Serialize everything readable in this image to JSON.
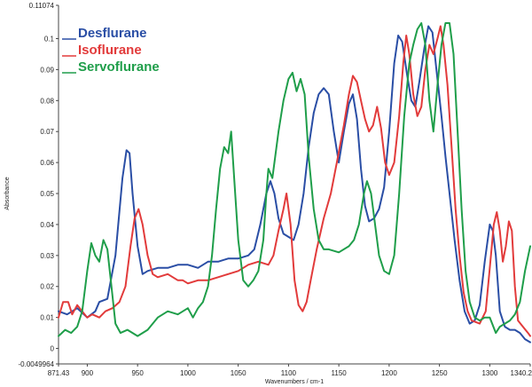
{
  "chart_data": {
    "type": "line",
    "title": "",
    "xlabel": "Wavenumbers / cm-1",
    "ylabel": "Absorbance",
    "xlim": [
      871.43,
      1340.2
    ],
    "ylim": [
      -0.0049964,
      0.11074
    ],
    "x_ticks": [
      {
        "value": 871.43,
        "label": "871.43"
      },
      {
        "value": 900,
        "label": "900"
      },
      {
        "value": 950,
        "label": "950"
      },
      {
        "value": 1000,
        "label": "1000"
      },
      {
        "value": 1050,
        "label": "1050"
      },
      {
        "value": 1100,
        "label": "1100"
      },
      {
        "value": 1150,
        "label": "1150"
      },
      {
        "value": 1200,
        "label": "1200"
      },
      {
        "value": 1250,
        "label": "1250"
      },
      {
        "value": 1300,
        "label": "1300"
      },
      {
        "value": 1340.2,
        "label": "1340.2"
      }
    ],
    "y_ticks": [
      {
        "value": -0.0049964,
        "label": "-0.0049964"
      },
      {
        "value": 0,
        "label": "0"
      },
      {
        "value": 0.01,
        "label": "0.01"
      },
      {
        "value": 0.02,
        "label": "0.02"
      },
      {
        "value": 0.03,
        "label": "0.03"
      },
      {
        "value": 0.04,
        "label": "0.04"
      },
      {
        "value": 0.05,
        "label": "0.05"
      },
      {
        "value": 0.06,
        "label": "0.06"
      },
      {
        "value": 0.07,
        "label": "0.07"
      },
      {
        "value": 0.08,
        "label": "0.08"
      },
      {
        "value": 0.09,
        "label": "0.09"
      },
      {
        "value": 0.1,
        "label": "0.1"
      },
      {
        "value": 0.11074,
        "label": "0.11074"
      }
    ],
    "grid": false,
    "legend_position": "top-left",
    "series": [
      {
        "name": "Desflurane",
        "color": "#2a4ea5",
        "points": [
          [
            871.43,
            0.012
          ],
          [
            880,
            0.011
          ],
          [
            890,
            0.013
          ],
          [
            900,
            0.01
          ],
          [
            908,
            0.012
          ],
          [
            912,
            0.015
          ],
          [
            920,
            0.016
          ],
          [
            928,
            0.03
          ],
          [
            935,
            0.055
          ],
          [
            939,
            0.064
          ],
          [
            942,
            0.063
          ],
          [
            945,
            0.05
          ],
          [
            950,
            0.033
          ],
          [
            955,
            0.024
          ],
          [
            960,
            0.025
          ],
          [
            970,
            0.026
          ],
          [
            980,
            0.026
          ],
          [
            990,
            0.027
          ],
          [
            1000,
            0.027
          ],
          [
            1010,
            0.026
          ],
          [
            1020,
            0.028
          ],
          [
            1030,
            0.028
          ],
          [
            1040,
            0.029
          ],
          [
            1050,
            0.029
          ],
          [
            1060,
            0.03
          ],
          [
            1066,
            0.032
          ],
          [
            1072,
            0.04
          ],
          [
            1078,
            0.05
          ],
          [
            1082,
            0.054
          ],
          [
            1086,
            0.05
          ],
          [
            1090,
            0.042
          ],
          [
            1095,
            0.037
          ],
          [
            1100,
            0.036
          ],
          [
            1105,
            0.035
          ],
          [
            1110,
            0.04
          ],
          [
            1115,
            0.05
          ],
          [
            1120,
            0.065
          ],
          [
            1125,
            0.076
          ],
          [
            1130,
            0.082
          ],
          [
            1135,
            0.084
          ],
          [
            1140,
            0.082
          ],
          [
            1145,
            0.07
          ],
          [
            1150,
            0.06
          ],
          [
            1155,
            0.07
          ],
          [
            1160,
            0.079
          ],
          [
            1164,
            0.082
          ],
          [
            1168,
            0.074
          ],
          [
            1172,
            0.058
          ],
          [
            1176,
            0.046
          ],
          [
            1180,
            0.041
          ],
          [
            1185,
            0.042
          ],
          [
            1190,
            0.045
          ],
          [
            1195,
            0.052
          ],
          [
            1200,
            0.07
          ],
          [
            1205,
            0.092
          ],
          [
            1209,
            0.101
          ],
          [
            1213,
            0.099
          ],
          [
            1218,
            0.088
          ],
          [
            1222,
            0.08
          ],
          [
            1226,
            0.078
          ],
          [
            1230,
            0.086
          ],
          [
            1235,
            0.097
          ],
          [
            1239,
            0.104
          ],
          [
            1243,
            0.102
          ],
          [
            1247,
            0.09
          ],
          [
            1252,
            0.075
          ],
          [
            1256,
            0.062
          ],
          [
            1260,
            0.05
          ],
          [
            1265,
            0.035
          ],
          [
            1270,
            0.022
          ],
          [
            1275,
            0.012
          ],
          [
            1280,
            0.008
          ],
          [
            1285,
            0.009
          ],
          [
            1290,
            0.014
          ],
          [
            1295,
            0.028
          ],
          [
            1300,
            0.04
          ],
          [
            1303,
            0.038
          ],
          [
            1306,
            0.03
          ],
          [
            1310,
            0.012
          ],
          [
            1315,
            0.007
          ],
          [
            1320,
            0.006
          ],
          [
            1325,
            0.006
          ],
          [
            1330,
            0.005
          ],
          [
            1335,
            0.003
          ],
          [
            1340.2,
            0.002
          ]
        ]
      },
      {
        "name": "Isoflurane",
        "color": "#e23b3b",
        "points": [
          [
            871.43,
            0.01
          ],
          [
            876,
            0.015
          ],
          [
            881,
            0.015
          ],
          [
            885,
            0.011
          ],
          [
            890,
            0.014
          ],
          [
            895,
            0.012
          ],
          [
            900,
            0.01
          ],
          [
            905,
            0.011
          ],
          [
            912,
            0.01
          ],
          [
            918,
            0.012
          ],
          [
            925,
            0.013
          ],
          [
            932,
            0.015
          ],
          [
            938,
            0.02
          ],
          [
            943,
            0.033
          ],
          [
            947,
            0.042
          ],
          [
            951,
            0.045
          ],
          [
            955,
            0.04
          ],
          [
            960,
            0.03
          ],
          [
            965,
            0.024
          ],
          [
            970,
            0.023
          ],
          [
            980,
            0.024
          ],
          [
            990,
            0.022
          ],
          [
            995,
            0.022
          ],
          [
            1000,
            0.021
          ],
          [
            1010,
            0.022
          ],
          [
            1020,
            0.022
          ],
          [
            1030,
            0.023
          ],
          [
            1040,
            0.024
          ],
          [
            1050,
            0.025
          ],
          [
            1060,
            0.027
          ],
          [
            1070,
            0.028
          ],
          [
            1080,
            0.027
          ],
          [
            1085,
            0.03
          ],
          [
            1090,
            0.038
          ],
          [
            1095,
            0.045
          ],
          [
            1098,
            0.05
          ],
          [
            1102,
            0.04
          ],
          [
            1106,
            0.022
          ],
          [
            1110,
            0.014
          ],
          [
            1114,
            0.012
          ],
          [
            1118,
            0.015
          ],
          [
            1122,
            0.022
          ],
          [
            1128,
            0.032
          ],
          [
            1135,
            0.042
          ],
          [
            1142,
            0.05
          ],
          [
            1148,
            0.06
          ],
          [
            1155,
            0.072
          ],
          [
            1160,
            0.082
          ],
          [
            1164,
            0.088
          ],
          [
            1168,
            0.086
          ],
          [
            1172,
            0.08
          ],
          [
            1176,
            0.074
          ],
          [
            1180,
            0.07
          ],
          [
            1184,
            0.072
          ],
          [
            1188,
            0.078
          ],
          [
            1192,
            0.071
          ],
          [
            1196,
            0.06
          ],
          [
            1200,
            0.056
          ],
          [
            1205,
            0.06
          ],
          [
            1210,
            0.075
          ],
          [
            1214,
            0.092
          ],
          [
            1217,
            0.101
          ],
          [
            1220,
            0.095
          ],
          [
            1224,
            0.082
          ],
          [
            1228,
            0.075
          ],
          [
            1232,
            0.078
          ],
          [
            1236,
            0.09
          ],
          [
            1240,
            0.098
          ],
          [
            1244,
            0.095
          ],
          [
            1248,
            0.1
          ],
          [
            1251,
            0.104
          ],
          [
            1254,
            0.098
          ],
          [
            1258,
            0.085
          ],
          [
            1262,
            0.065
          ],
          [
            1266,
            0.045
          ],
          [
            1270,
            0.03
          ],
          [
            1274,
            0.018
          ],
          [
            1278,
            0.012
          ],
          [
            1282,
            0.009
          ],
          [
            1290,
            0.008
          ],
          [
            1296,
            0.012
          ],
          [
            1300,
            0.026
          ],
          [
            1304,
            0.04
          ],
          [
            1307,
            0.044
          ],
          [
            1310,
            0.038
          ],
          [
            1313,
            0.028
          ],
          [
            1316,
            0.033
          ],
          [
            1319,
            0.041
          ],
          [
            1322,
            0.038
          ],
          [
            1325,
            0.02
          ],
          [
            1328,
            0.009
          ],
          [
            1333,
            0.007
          ],
          [
            1338,
            0.005
          ],
          [
            1340.2,
            0.004
          ]
        ]
      },
      {
        "name": "Servoflurane",
        "color": "#1f9e4a",
        "points": [
          [
            871.43,
            0.004
          ],
          [
            878,
            0.006
          ],
          [
            884,
            0.005
          ],
          [
            890,
            0.007
          ],
          [
            895,
            0.012
          ],
          [
            900,
            0.025
          ],
          [
            904,
            0.034
          ],
          [
            908,
            0.03
          ],
          [
            912,
            0.028
          ],
          [
            916,
            0.035
          ],
          [
            920,
            0.032
          ],
          [
            924,
            0.02
          ],
          [
            928,
            0.008
          ],
          [
            933,
            0.005
          ],
          [
            940,
            0.006
          ],
          [
            950,
            0.004
          ],
          [
            960,
            0.006
          ],
          [
            970,
            0.01
          ],
          [
            980,
            0.012
          ],
          [
            990,
            0.011
          ],
          [
            1000,
            0.013
          ],
          [
            1005,
            0.01
          ],
          [
            1010,
            0.013
          ],
          [
            1015,
            0.015
          ],
          [
            1020,
            0.02
          ],
          [
            1024,
            0.03
          ],
          [
            1028,
            0.045
          ],
          [
            1032,
            0.058
          ],
          [
            1036,
            0.065
          ],
          [
            1040,
            0.063
          ],
          [
            1043,
            0.07
          ],
          [
            1046,
            0.055
          ],
          [
            1050,
            0.035
          ],
          [
            1055,
            0.022
          ],
          [
            1060,
            0.02
          ],
          [
            1065,
            0.022
          ],
          [
            1070,
            0.025
          ],
          [
            1075,
            0.035
          ],
          [
            1078,
            0.05
          ],
          [
            1080,
            0.058
          ],
          [
            1084,
            0.055
          ],
          [
            1090,
            0.07
          ],
          [
            1095,
            0.08
          ],
          [
            1100,
            0.087
          ],
          [
            1104,
            0.089
          ],
          [
            1108,
            0.083
          ],
          [
            1112,
            0.087
          ],
          [
            1116,
            0.082
          ],
          [
            1120,
            0.062
          ],
          [
            1125,
            0.045
          ],
          [
            1130,
            0.035
          ],
          [
            1135,
            0.032
          ],
          [
            1140,
            0.032
          ],
          [
            1150,
            0.031
          ],
          [
            1160,
            0.033
          ],
          [
            1165,
            0.035
          ],
          [
            1170,
            0.04
          ],
          [
            1175,
            0.05
          ],
          [
            1178,
            0.054
          ],
          [
            1182,
            0.05
          ],
          [
            1186,
            0.04
          ],
          [
            1190,
            0.03
          ],
          [
            1195,
            0.025
          ],
          [
            1200,
            0.024
          ],
          [
            1205,
            0.03
          ],
          [
            1210,
            0.05
          ],
          [
            1215,
            0.075
          ],
          [
            1220,
            0.092
          ],
          [
            1224,
            0.098
          ],
          [
            1228,
            0.103
          ],
          [
            1232,
            0.105
          ],
          [
            1236,
            0.098
          ],
          [
            1240,
            0.08
          ],
          [
            1244,
            0.07
          ],
          [
            1248,
            0.085
          ],
          [
            1252,
            0.098
          ],
          [
            1256,
            0.105
          ],
          [
            1260,
            0.105
          ],
          [
            1264,
            0.095
          ],
          [
            1268,
            0.07
          ],
          [
            1272,
            0.045
          ],
          [
            1276,
            0.025
          ],
          [
            1280,
            0.015
          ],
          [
            1285,
            0.01
          ],
          [
            1290,
            0.009
          ],
          [
            1295,
            0.01
          ],
          [
            1300,
            0.01
          ],
          [
            1306,
            0.005
          ],
          [
            1310,
            0.007
          ],
          [
            1315,
            0.008
          ],
          [
            1320,
            0.009
          ],
          [
            1325,
            0.011
          ],
          [
            1330,
            0.015
          ],
          [
            1335,
            0.025
          ],
          [
            1340.2,
            0.033
          ]
        ]
      }
    ]
  }
}
